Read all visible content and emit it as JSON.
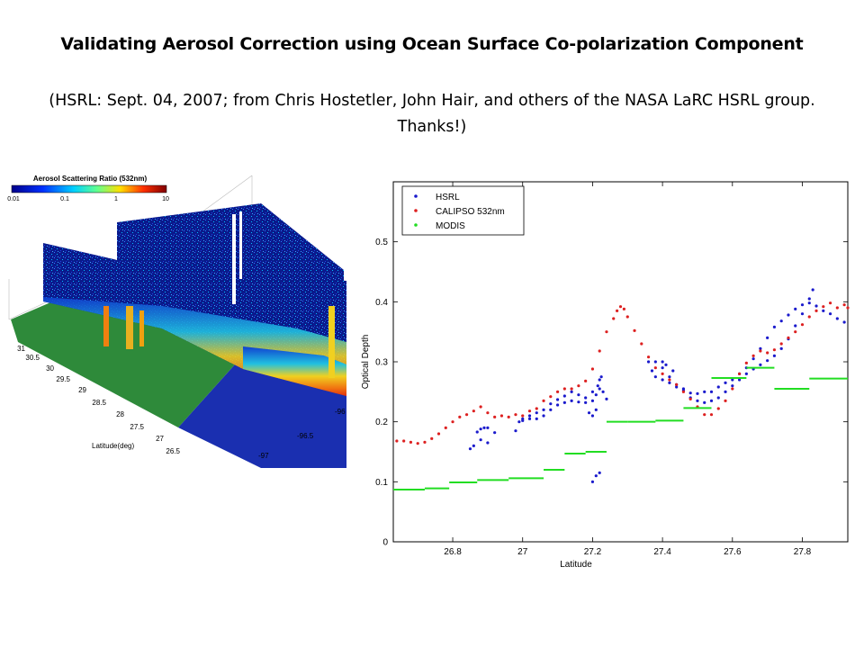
{
  "title": "Validating Aerosol Correction using Ocean Surface Co-polarization Component",
  "subtitle": "(HSRL: Sept. 04, 2007; from Chris Hostetler, John Hair, and others of the NASA LaRC HSRL group. Thanks!)",
  "figure3d": {
    "colorbar_title": "Aerosol Scattering Ratio (532nm)",
    "colorbar_ticks": [
      "0.01",
      "0.1",
      "1",
      "10"
    ],
    "lat_ticks": [
      "31",
      "30.5",
      "30",
      "29.5",
      "29",
      "28.5",
      "28",
      "27.5",
      "27",
      "26.5"
    ],
    "lon_ticks": [
      "-96",
      "-96.5",
      "-97"
    ],
    "lat_label": "Latitude(deg)",
    "colors": {
      "ocean": "#1a2fb0",
      "land": "#2e8a3a",
      "curtain_low": "#0a1a8c",
      "curtain_high": "#e8a020"
    }
  },
  "chart_data": {
    "type": "scatter",
    "xlabel": "Latitude",
    "ylabel": "Optical Depth",
    "xlim": [
      26.63,
      27.93
    ],
    "ylim": [
      0,
      0.6
    ],
    "xticks": [
      26.8,
      27,
      27.2,
      27.4,
      27.6,
      27.8
    ],
    "yticks": [
      0,
      0.1,
      0.2,
      0.3,
      0.4,
      0.5
    ],
    "legend_position": "top-left",
    "grid": false,
    "series": [
      {
        "name": "HSRL",
        "color": "#1a1acc",
        "points": [
          [
            26.85,
            0.155
          ],
          [
            26.86,
            0.16
          ],
          [
            26.87,
            0.183
          ],
          [
            26.88,
            0.188
          ],
          [
            26.89,
            0.19
          ],
          [
            26.9,
            0.19
          ],
          [
            26.88,
            0.17
          ],
          [
            26.9,
            0.165
          ],
          [
            26.92,
            0.182
          ],
          [
            26.98,
            0.185
          ],
          [
            26.99,
            0.2
          ],
          [
            27.0,
            0.205
          ],
          [
            27.02,
            0.21
          ],
          [
            27.04,
            0.215
          ],
          [
            27.06,
            0.22
          ],
          [
            27.08,
            0.23
          ],
          [
            27.1,
            0.237
          ],
          [
            27.12,
            0.243
          ],
          [
            27.14,
            0.25
          ],
          [
            27.16,
            0.245
          ],
          [
            27.18,
            0.24
          ],
          [
            27.2,
            0.25
          ],
          [
            27.0,
            0.202
          ],
          [
            27.02,
            0.205
          ],
          [
            27.04,
            0.205
          ],
          [
            27.06,
            0.21
          ],
          [
            27.08,
            0.22
          ],
          [
            27.1,
            0.228
          ],
          [
            27.12,
            0.232
          ],
          [
            27.14,
            0.235
          ],
          [
            27.16,
            0.233
          ],
          [
            27.18,
            0.232
          ],
          [
            27.2,
            0.235
          ],
          [
            27.21,
            0.245
          ],
          [
            27.215,
            0.26
          ],
          [
            27.22,
            0.27
          ],
          [
            27.225,
            0.275
          ],
          [
            27.19,
            0.215
          ],
          [
            27.2,
            0.21
          ],
          [
            27.21,
            0.22
          ],
          [
            27.22,
            0.255
          ],
          [
            27.23,
            0.25
          ],
          [
            27.24,
            0.238
          ],
          [
            27.2,
            0.1
          ],
          [
            27.21,
            0.11
          ],
          [
            27.22,
            0.115
          ],
          [
            27.36,
            0.3
          ],
          [
            27.37,
            0.285
          ],
          [
            27.38,
            0.275
          ],
          [
            27.4,
            0.27
          ],
          [
            27.42,
            0.265
          ],
          [
            27.44,
            0.258
          ],
          [
            27.46,
            0.252
          ],
          [
            27.48,
            0.248
          ],
          [
            27.5,
            0.247
          ],
          [
            27.52,
            0.25
          ],
          [
            27.54,
            0.25
          ],
          [
            27.56,
            0.258
          ],
          [
            27.58,
            0.265
          ],
          [
            27.6,
            0.27
          ],
          [
            27.62,
            0.28
          ],
          [
            27.64,
            0.29
          ],
          [
            27.66,
            0.305
          ],
          [
            27.68,
            0.322
          ],
          [
            27.7,
            0.34
          ],
          [
            27.72,
            0.358
          ],
          [
            27.74,
            0.368
          ],
          [
            27.76,
            0.378
          ],
          [
            27.78,
            0.388
          ],
          [
            27.8,
            0.395
          ],
          [
            27.82,
            0.398
          ],
          [
            27.84,
            0.393
          ],
          [
            27.86,
            0.385
          ],
          [
            27.88,
            0.38
          ],
          [
            27.9,
            0.372
          ],
          [
            27.92,
            0.366
          ],
          [
            27.38,
            0.3
          ],
          [
            27.4,
            0.29
          ],
          [
            27.42,
            0.275
          ],
          [
            27.44,
            0.262
          ],
          [
            27.46,
            0.255
          ],
          [
            27.48,
            0.24
          ],
          [
            27.5,
            0.235
          ],
          [
            27.52,
            0.232
          ],
          [
            27.54,
            0.235
          ],
          [
            27.56,
            0.24
          ],
          [
            27.58,
            0.25
          ],
          [
            27.6,
            0.26
          ],
          [
            27.62,
            0.27
          ],
          [
            27.64,
            0.28
          ],
          [
            27.66,
            0.288
          ],
          [
            27.68,
            0.295
          ],
          [
            27.7,
            0.302
          ],
          [
            27.72,
            0.31
          ],
          [
            27.74,
            0.322
          ],
          [
            27.76,
            0.338
          ],
          [
            27.78,
            0.36
          ],
          [
            27.8,
            0.38
          ],
          [
            27.82,
            0.405
          ],
          [
            27.83,
            0.42
          ],
          [
            27.4,
            0.3
          ],
          [
            27.41,
            0.295
          ],
          [
            27.43,
            0.285
          ]
        ]
      },
      {
        "name": "CALIPSO 532nm",
        "color": "#dd2020",
        "points": [
          [
            26.64,
            0.168
          ],
          [
            26.66,
            0.168
          ],
          [
            26.68,
            0.166
          ],
          [
            26.7,
            0.164
          ],
          [
            26.72,
            0.166
          ],
          [
            26.74,
            0.172
          ],
          [
            26.76,
            0.18
          ],
          [
            26.78,
            0.19
          ],
          [
            26.8,
            0.2
          ],
          [
            26.82,
            0.208
          ],
          [
            26.84,
            0.212
          ],
          [
            26.86,
            0.218
          ],
          [
            26.88,
            0.225
          ],
          [
            26.9,
            0.215
          ],
          [
            26.92,
            0.208
          ],
          [
            26.94,
            0.21
          ],
          [
            26.96,
            0.208
          ],
          [
            26.98,
            0.212
          ],
          [
            27.0,
            0.21
          ],
          [
            27.02,
            0.218
          ],
          [
            27.04,
            0.222
          ],
          [
            27.06,
            0.235
          ],
          [
            27.08,
            0.242
          ],
          [
            27.1,
            0.25
          ],
          [
            27.12,
            0.255
          ],
          [
            27.14,
            0.255
          ],
          [
            27.16,
            0.26
          ],
          [
            27.18,
            0.268
          ],
          [
            27.2,
            0.288
          ],
          [
            27.22,
            0.318
          ],
          [
            27.24,
            0.35
          ],
          [
            27.26,
            0.372
          ],
          [
            27.27,
            0.385
          ],
          [
            27.28,
            0.392
          ],
          [
            27.29,
            0.388
          ],
          [
            27.3,
            0.375
          ],
          [
            27.32,
            0.352
          ],
          [
            27.34,
            0.33
          ],
          [
            27.36,
            0.308
          ],
          [
            27.38,
            0.29
          ],
          [
            27.4,
            0.28
          ],
          [
            27.42,
            0.27
          ],
          [
            27.44,
            0.262
          ],
          [
            27.46,
            0.25
          ],
          [
            27.48,
            0.238
          ],
          [
            27.5,
            0.225
          ],
          [
            27.52,
            0.212
          ],
          [
            27.54,
            0.212
          ],
          [
            27.56,
            0.222
          ],
          [
            27.58,
            0.235
          ],
          [
            27.6,
            0.255
          ],
          [
            27.62,
            0.28
          ],
          [
            27.64,
            0.298
          ],
          [
            27.66,
            0.31
          ],
          [
            27.68,
            0.318
          ],
          [
            27.7,
            0.315
          ],
          [
            27.72,
            0.32
          ],
          [
            27.74,
            0.33
          ],
          [
            27.76,
            0.34
          ],
          [
            27.78,
            0.35
          ],
          [
            27.8,
            0.362
          ],
          [
            27.82,
            0.375
          ],
          [
            27.84,
            0.385
          ],
          [
            27.86,
            0.392
          ],
          [
            27.88,
            0.398
          ],
          [
            27.9,
            0.39
          ],
          [
            27.92,
            0.395
          ],
          [
            27.93,
            0.39
          ]
        ]
      },
      {
        "name": "MODIS",
        "color": "#22dd22",
        "segments": [
          [
            26.63,
            26.72,
            0.087
          ],
          [
            26.72,
            26.79,
            0.089
          ],
          [
            26.79,
            26.87,
            0.099
          ],
          [
            26.87,
            26.96,
            0.103
          ],
          [
            26.96,
            27.06,
            0.106
          ],
          [
            27.06,
            27.12,
            0.12
          ],
          [
            27.12,
            27.18,
            0.147
          ],
          [
            27.18,
            27.24,
            0.15
          ],
          [
            27.24,
            27.3,
            0.2
          ],
          [
            27.3,
            27.38,
            0.2
          ],
          [
            27.38,
            27.46,
            0.202
          ],
          [
            27.46,
            27.54,
            0.223
          ],
          [
            27.54,
            27.64,
            0.273
          ],
          [
            27.64,
            27.72,
            0.29
          ],
          [
            27.72,
            27.82,
            0.255
          ],
          [
            27.82,
            27.93,
            0.272
          ]
        ]
      }
    ]
  }
}
